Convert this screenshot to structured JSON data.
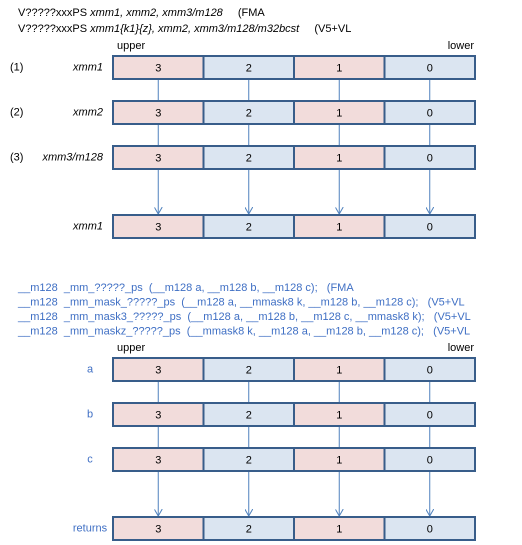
{
  "header": {
    "lines": [
      {
        "mnemonic": "V?????xxxPS",
        "operands": "xmm1, xmm2, xmm3/m128",
        "note": "(FMA"
      },
      {
        "mnemonic": "V?????xxxPS",
        "operands": "xmm1{k1}{z}, xmm2, xmm3/m128/m32bcst",
        "note": "(V5+VL"
      }
    ]
  },
  "diagram1": {
    "upper": "upper",
    "lower": "lower",
    "rows": [
      {
        "index": "(1)",
        "label": "xmm1",
        "cells": [
          "3",
          "2",
          "1",
          "0"
        ]
      },
      {
        "index": "(2)",
        "label": "xmm2",
        "cells": [
          "3",
          "2",
          "1",
          "0"
        ]
      },
      {
        "index": "(3)",
        "label": "xmm3/m128",
        "cells": [
          "3",
          "2",
          "1",
          "0"
        ]
      }
    ],
    "result": {
      "label": "xmm1",
      "cells": [
        "3",
        "2",
        "1",
        "0"
      ]
    }
  },
  "code": {
    "lines": [
      "__m128  _mm_?????_ps  (__m128 a, __m128 b, __m128 c);   (FMA",
      "__m128  _mm_mask_?????_ps  (__m128 a, __mmask8 k, __m128 b, __m128 c);   (V5+VL",
      "__m128  _mm_mask3_?????_ps  (__m128 a, __m128 b, __m128 c, __mmask8 k);   (V5+VL",
      "__m128  _mm_maskz_?????_ps  (__mmask8 k, __m128 a, __m128 b, __m128 c);   (V5+VL"
    ]
  },
  "diagram2": {
    "upper": "upper",
    "lower": "lower",
    "rows": [
      {
        "label": "a",
        "cells": [
          "3",
          "2",
          "1",
          "0"
        ]
      },
      {
        "label": "b",
        "cells": [
          "3",
          "2",
          "1",
          "0"
        ]
      },
      {
        "label": "c",
        "cells": [
          "3",
          "2",
          "1",
          "0"
        ]
      }
    ],
    "result": {
      "label": "returns",
      "cells": [
        "3",
        "2",
        "1",
        "0"
      ]
    }
  }
}
